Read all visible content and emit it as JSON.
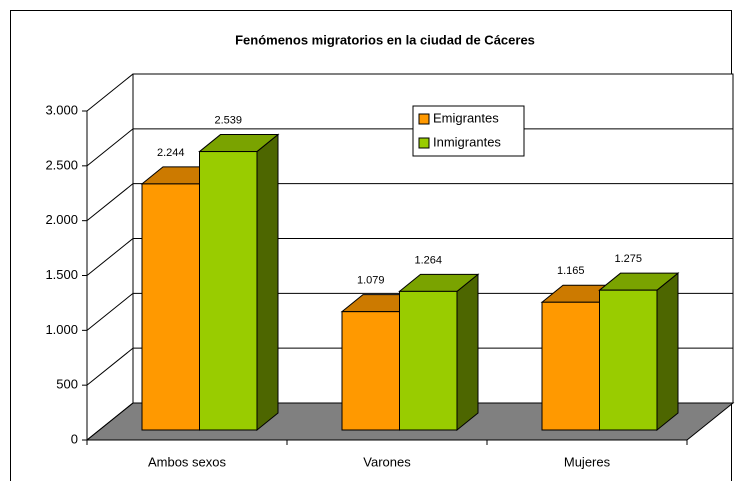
{
  "chart_data": {
    "type": "bar3d",
    "title": "Fenómenos migratorios en la ciudad de Cáceres",
    "categories": [
      "Ambos sexos",
      "Varones",
      "Mujeres"
    ],
    "series": [
      {
        "name": "Emigrantes",
        "color": "#ff9900",
        "values": [
          2244,
          1079,
          1165
        ],
        "value_labels": [
          "2.244",
          "1.079",
          "1.165"
        ]
      },
      {
        "name": "Inmigrantes",
        "color": "#99cc00",
        "values": [
          2539,
          1264,
          1275
        ],
        "value_labels": [
          "2.539",
          "1.264",
          "1.275"
        ]
      }
    ],
    "ylim": [
      0,
      3000
    ],
    "yticks": [
      0,
      500,
      {
        "value": 1000,
        "label": "1.000"
      },
      {
        "value": 1500,
        "label": "1.500"
      },
      {
        "value": 2000,
        "label": "2.000"
      },
      {
        "value": 2500,
        "label": "2.500"
      },
      {
        "value": 3000,
        "label": "3.000"
      }
    ],
    "grid": true,
    "legend": "top"
  }
}
